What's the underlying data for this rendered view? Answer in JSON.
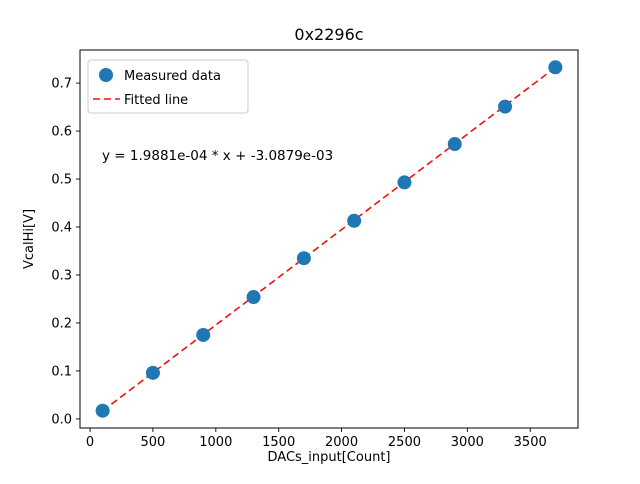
{
  "chart_data": {
    "type": "scatter",
    "title": "0x2296c",
    "xlabel": "DACs_input[Count]",
    "ylabel": "VcalHi[V]",
    "annotation": "y = 1.9881e-04 * x + -3.0879e-03",
    "legend": [
      {
        "label": "Measured data",
        "marker": "circle"
      },
      {
        "label": "Fitted line",
        "marker": "dashed-line"
      }
    ],
    "x": [
      100,
      500,
      900,
      1300,
      1700,
      2100,
      2500,
      2900,
      3300,
      3700
    ],
    "y": [
      0.017,
      0.096,
      0.175,
      0.254,
      0.335,
      0.413,
      0.493,
      0.573,
      0.651,
      0.733
    ],
    "fit": {
      "slope": 0.00019881,
      "intercept": -0.0030879
    },
    "xlim": [
      -80,
      3880
    ],
    "ylim": [
      -0.019,
      0.769
    ],
    "xticks": [
      0,
      500,
      1000,
      1500,
      2000,
      2500,
      3000,
      3500
    ],
    "yticks": [
      0.0,
      0.1,
      0.2,
      0.3,
      0.4,
      0.5,
      0.6,
      0.7
    ],
    "grid": false,
    "legend_position": "upper-left",
    "colors": {
      "marker": "#1f77b4",
      "line": "#ee1111",
      "axis": "#000000",
      "legend_border": "#cccccc"
    }
  }
}
